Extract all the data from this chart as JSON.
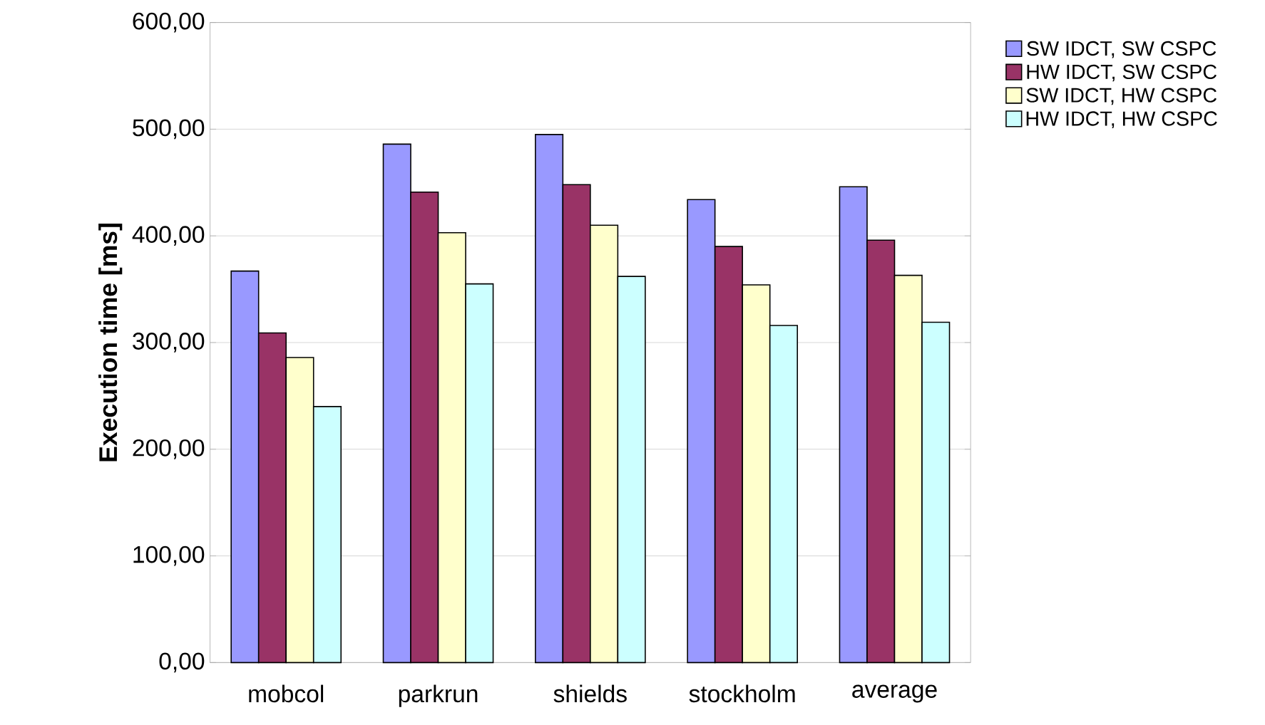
{
  "chart_data": {
    "type": "bar",
    "ylabel": "Execution time [ms]",
    "categories": [
      "mobcol",
      "parkrun",
      "shields",
      "stockholm",
      "average"
    ],
    "series": [
      {
        "name": "SW IDCT, SW CSPC",
        "color": "#9999ff",
        "values": [
          367,
          486,
          495,
          434,
          446
        ]
      },
      {
        "name": "HW IDCT, SW CSPC",
        "color": "#993366",
        "values": [
          309,
          441,
          448,
          390,
          396
        ]
      },
      {
        "name": "SW IDCT, HW CSPC",
        "color": "#ffffcc",
        "values": [
          286,
          403,
          410,
          354,
          363
        ]
      },
      {
        "name": "HW IDCT, HW CSPC",
        "color": "#ccffff",
        "values": [
          240,
          355,
          362,
          316,
          319
        ]
      }
    ],
    "ylim": [
      0,
      600
    ],
    "yticks": [
      {
        "value": 0,
        "label": "0,00"
      },
      {
        "value": 100,
        "label": "100,00"
      },
      {
        "value": 200,
        "label": "200,00"
      },
      {
        "value": 300,
        "label": "300,00"
      },
      {
        "value": 400,
        "label": "400,00"
      },
      {
        "value": 500,
        "label": "500,00"
      },
      {
        "value": 600,
        "label": "600,00"
      }
    ],
    "grid": "y",
    "legend": "top right"
  }
}
